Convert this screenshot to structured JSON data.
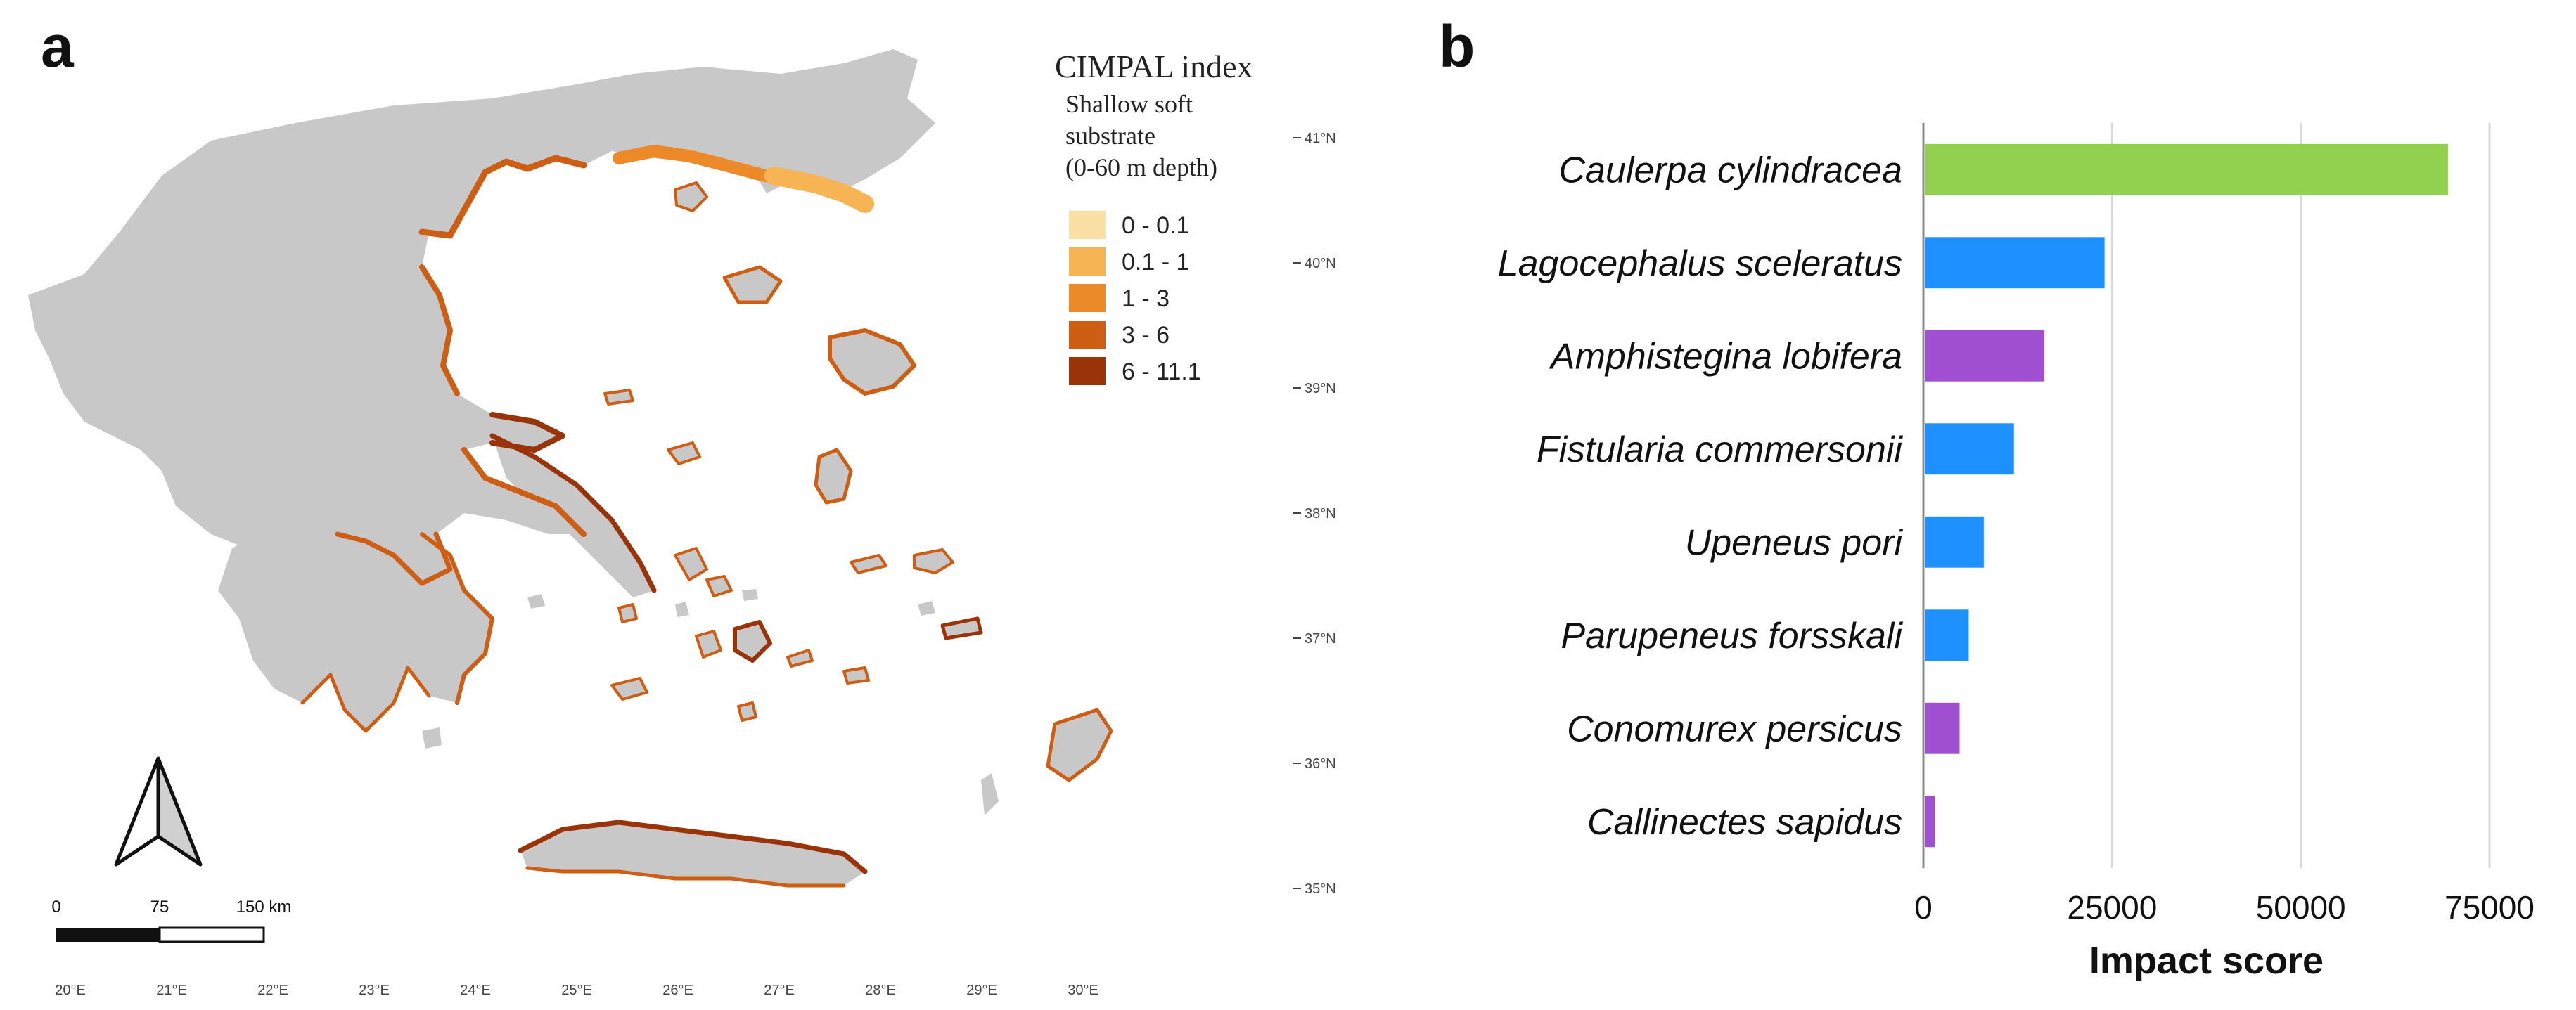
{
  "panels": {
    "a": "a",
    "b": "b"
  },
  "map": {
    "legend": {
      "title": "CIMPAL index",
      "subtitle_lines": [
        "Shallow soft",
        "substrate",
        "(0-60 m depth)"
      ],
      "classes": [
        {
          "label": "0 - 0.1",
          "color": "#fbe0a6"
        },
        {
          "label": "0.1 - 1",
          "color": "#f7b455"
        },
        {
          "label": "1 - 3",
          "color": "#ec8a2a"
        },
        {
          "label": "3 - 6",
          "color": "#cf5e15"
        },
        {
          "label": "6 - 11.1",
          "color": "#9a3408"
        }
      ]
    },
    "lat_labels": [
      "41°N",
      "40°N",
      "39°N",
      "38°N",
      "37°N",
      "36°N",
      "35°N"
    ],
    "lon_labels": [
      "20°E",
      "21°E",
      "22°E",
      "23°E",
      "24°E",
      "25°E",
      "26°E",
      "27°E",
      "28°E",
      "29°E",
      "30°E"
    ],
    "scale_bar": {
      "labels": [
        "0",
        "75",
        "150 km"
      ]
    },
    "north_arrow_icon": "north-arrow-icon",
    "land_color": "#c8c8c8"
  },
  "chart_data": {
    "type": "bar",
    "orientation": "horizontal",
    "categories": [
      "Caulerpa cylindracea",
      "Lagocephalus sceleratus",
      "Amphistegina lobifera",
      "Fistularia commersonii",
      "Upeneus pori",
      "Parupeneus forsskali",
      "Conomurex persicus",
      "Callinectes sapidus"
    ],
    "values": [
      69500,
      24000,
      16000,
      12000,
      8000,
      6000,
      4800,
      1500
    ],
    "colors": [
      "#92d050",
      "#1e90ff",
      "#9f4fd0",
      "#1e90ff",
      "#1e90ff",
      "#1e90ff",
      "#9f4fd0",
      "#9f4fd0"
    ],
    "xlabel": "Impact score",
    "xlim": [
      0,
      75000
    ],
    "xticks": [
      0,
      25000,
      50000,
      75000
    ],
    "grid": true
  }
}
